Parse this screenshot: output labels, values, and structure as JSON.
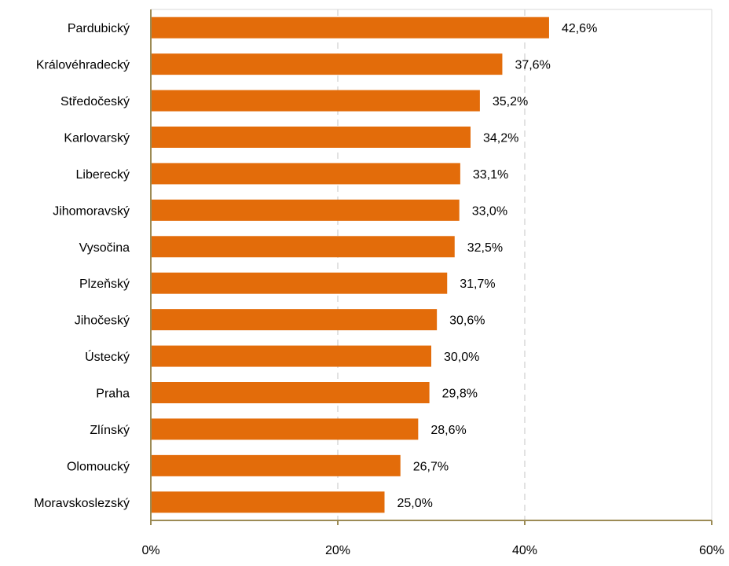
{
  "chart_data": {
    "type": "bar",
    "orientation": "horizontal",
    "title": "",
    "xlabel": "",
    "ylabel": "",
    "categories": [
      "Pardubický",
      "Královéhradecký",
      "Středočeský",
      "Karlovarský",
      "Liberecký",
      "Jihomoravský",
      "Vysočina",
      "Plzeňský",
      "Jihočeský",
      "Ústecký",
      "Praha",
      "Zlínský",
      "Olomoucký",
      "Moravskoslezský"
    ],
    "values": [
      42.6,
      37.6,
      35.2,
      34.2,
      33.1,
      33.0,
      32.5,
      31.7,
      30.6,
      30.0,
      29.8,
      28.6,
      26.7,
      25.0
    ],
    "value_labels": [
      "42,6%",
      "37,6%",
      "35,2%",
      "34,2%",
      "33,1%",
      "33,0%",
      "32,5%",
      "31,7%",
      "30,6%",
      "30,0%",
      "29,8%",
      "28,6%",
      "26,7%",
      "25,0%"
    ],
    "xlim": [
      0,
      60
    ],
    "x_ticks": [
      0,
      20,
      40,
      60
    ],
    "x_tick_labels": [
      "0%",
      "20%",
      "40%",
      "60%"
    ],
    "grid": true,
    "legend": "none",
    "colors": {
      "bar": "#E36C0A",
      "axis": "#9C8B55",
      "grid": "#D9D9D9",
      "frame": "#D9D9D9"
    }
  }
}
